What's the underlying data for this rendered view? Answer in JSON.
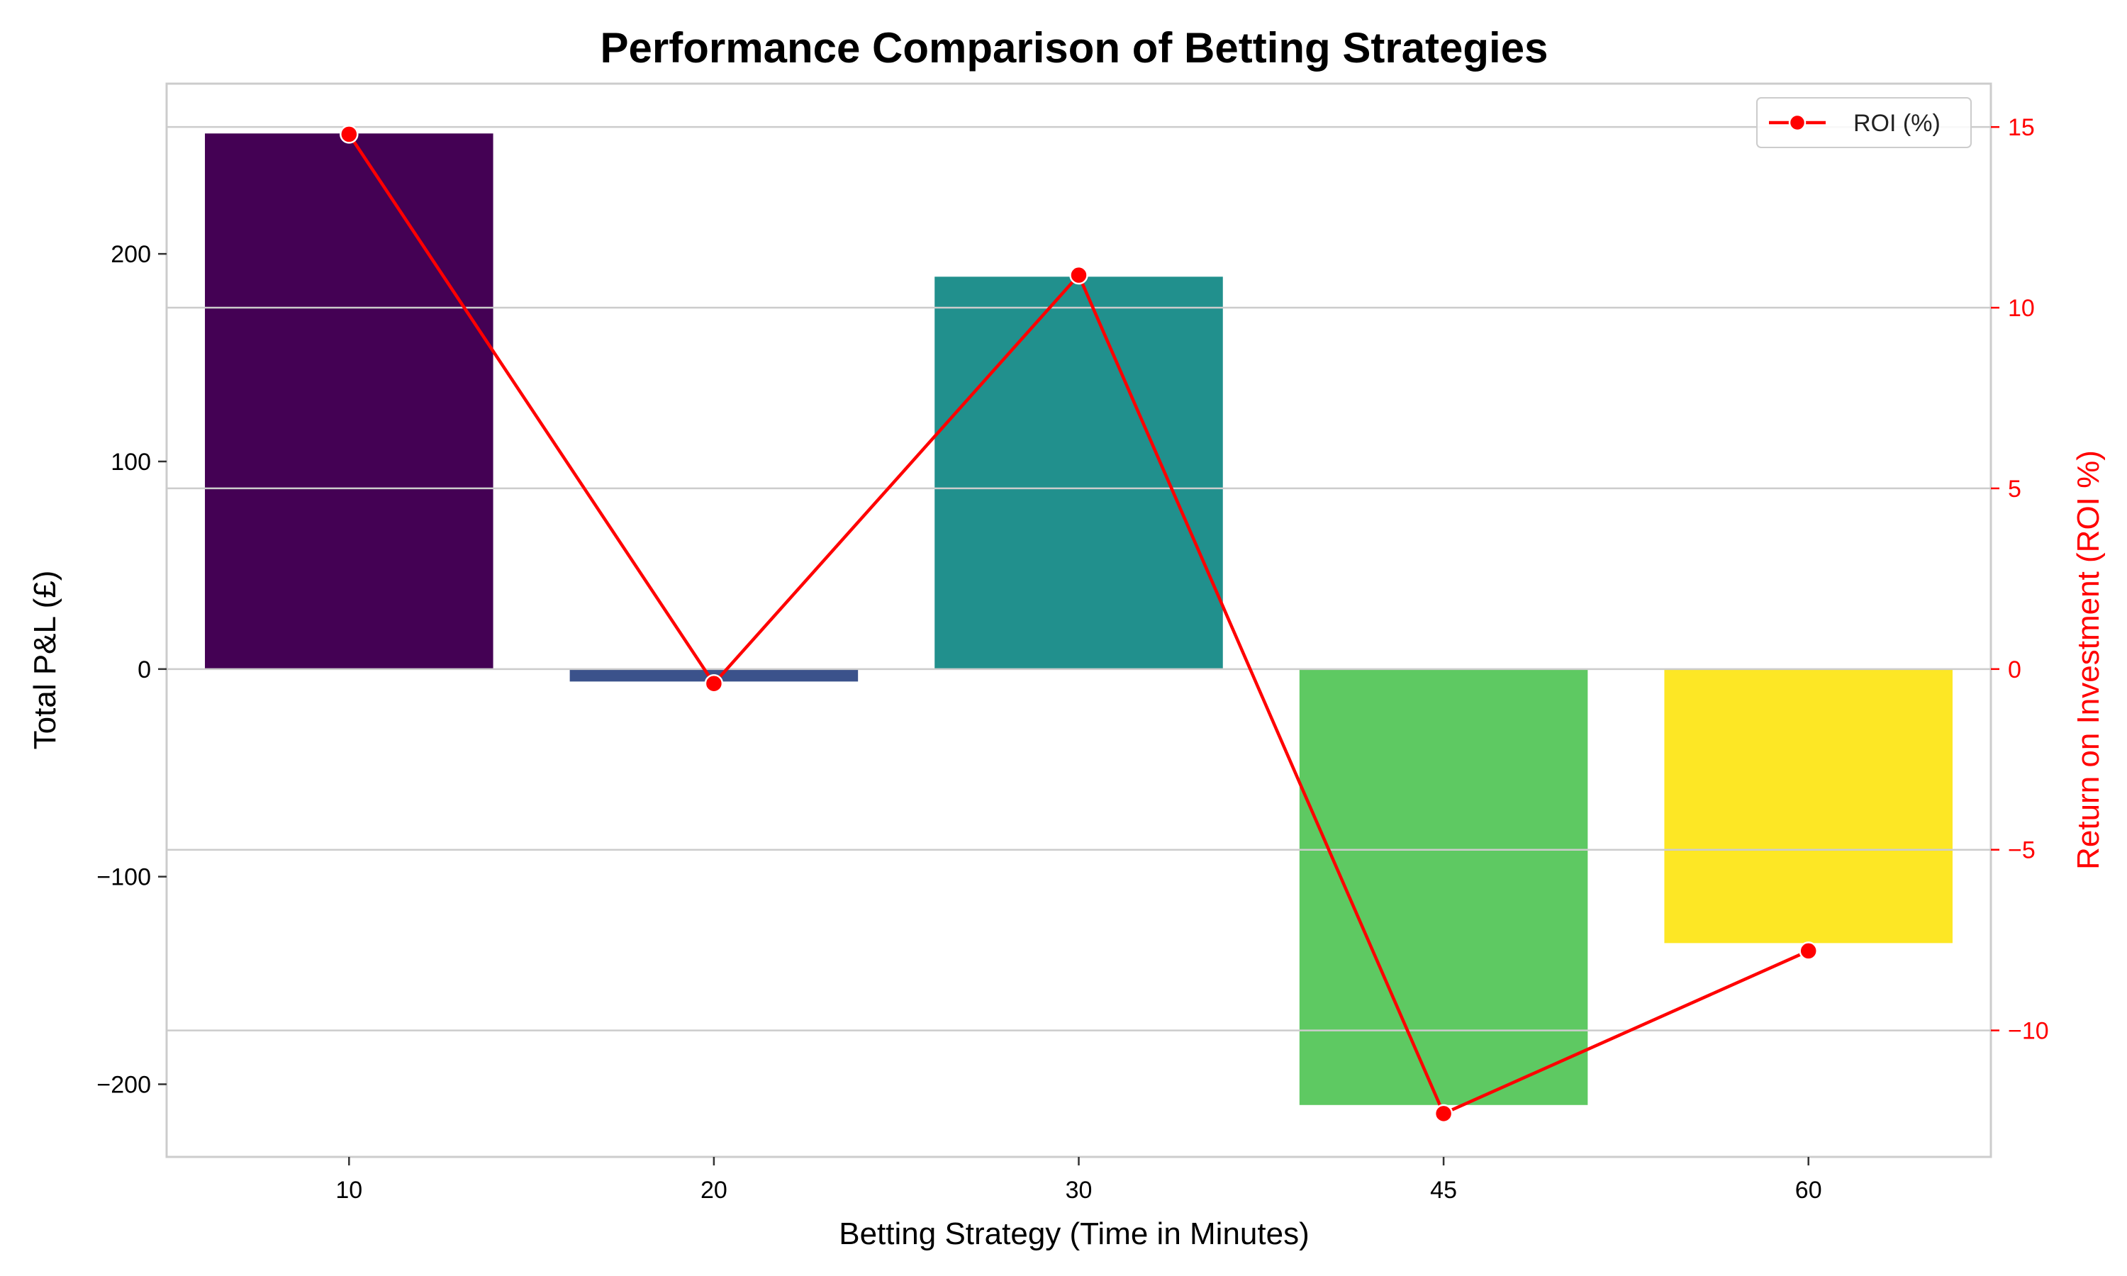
{
  "chart_data": {
    "type": "bar",
    "title": "Performance Comparison of Betting Strategies",
    "xlabel": "Betting Strategy (Time in Minutes)",
    "ylabel": "Total P&L (£)",
    "y2label": "Return on Investment (ROI %)",
    "categories": [
      "10",
      "20",
      "30",
      "45",
      "60"
    ],
    "series": [
      {
        "axis": "left",
        "type": "bar",
        "values": [
          258,
          -6,
          189,
          -210,
          -132
        ],
        "colors": [
          "#440154",
          "#3b528b",
          "#21908d",
          "#5ec962",
          "#fde725"
        ]
      },
      {
        "axis": "right",
        "type": "line",
        "name": "ROI (%)",
        "values": [
          14.8,
          -0.4,
          10.9,
          -12.3,
          -7.8
        ],
        "color": "#ff0000"
      }
    ],
    "ylim": [
      -235,
      282
    ],
    "y2lim": [
      -13.5,
      16.2
    ],
    "yticks": [
      -200,
      -100,
      0,
      100,
      200
    ],
    "ytick_labels": [
      "−200",
      "−100",
      "0",
      "100",
      "200"
    ],
    "y2ticks": [
      -10,
      -5,
      0,
      5,
      10,
      15
    ],
    "y2tick_labels": [
      "−10",
      "−5",
      "0",
      "5",
      "10",
      "15"
    ],
    "grid": "horizontal lines at right-axis ticks",
    "legend": "top-right",
    "right_axis_color": "#ff0000"
  }
}
